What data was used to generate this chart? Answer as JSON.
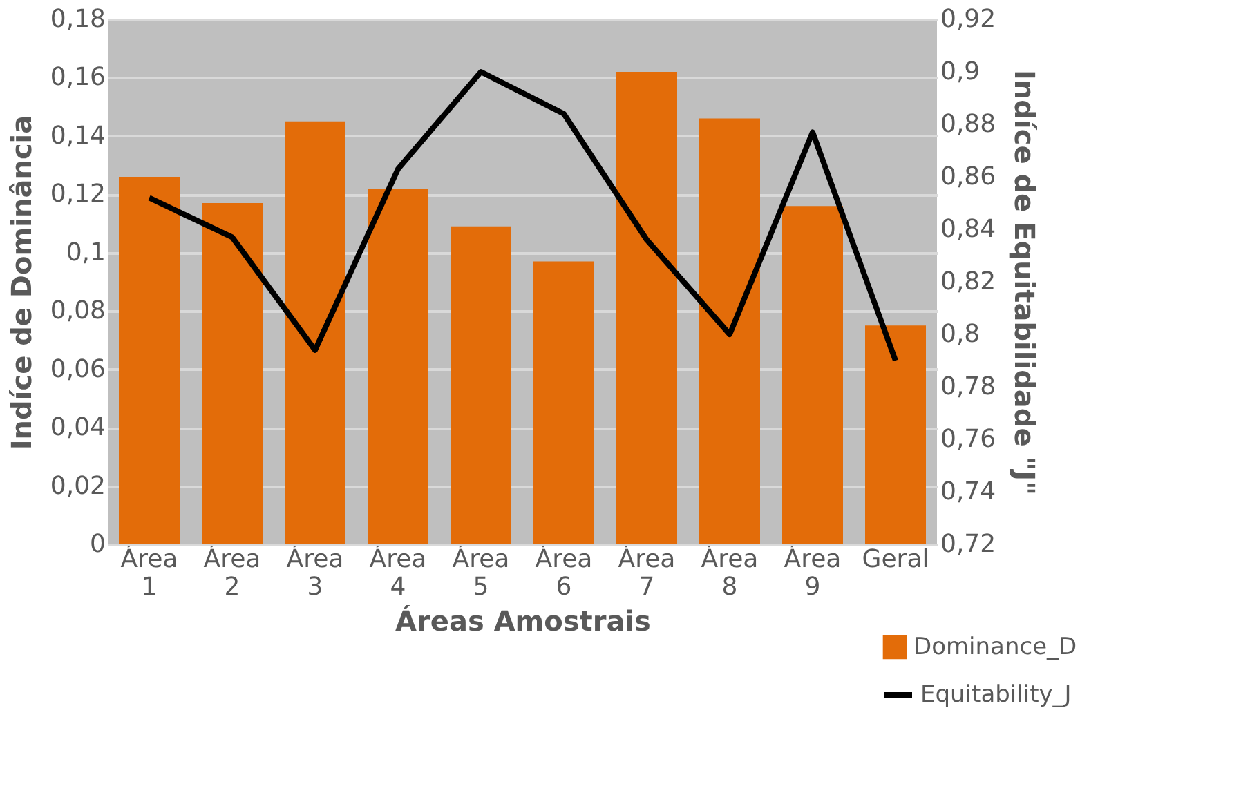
{
  "chart_data": {
    "type": "bar",
    "xlabel": "Áreas Amostrais",
    "ylabel": "Indíce de Dominância",
    "y2label": "Indíce de Equitabilidade \"J\"",
    "categories": [
      "Área 1",
      "Área 2",
      "Área 3",
      "Área 4",
      "Área 5",
      "Área 6",
      "Área 7",
      "Área 8",
      "Área 9",
      "Geral"
    ],
    "series": [
      {
        "name": "Dominance_D",
        "color": "#e36c09",
        "values": [
          0.126,
          0.117,
          0.145,
          0.122,
          0.109,
          0.097,
          0.162,
          0.146,
          0.116,
          0.075
        ]
      },
      {
        "name": "Equitability_J",
        "type": "line",
        "axis": "y2",
        "color": "#000000",
        "values": [
          0.852,
          0.837,
          0.794,
          0.863,
          0.9,
          0.884,
          0.836,
          0.8,
          0.877,
          0.79
        ]
      }
    ],
    "ylim": [
      0,
      0.18
    ],
    "yticks": [
      0,
      {
        "value": 0.02,
        "label": "0,02"
      },
      {
        "value": 0.04,
        "label": "0,04"
      },
      {
        "value": 0.06,
        "label": "0,06"
      },
      {
        "value": 0.08,
        "label": "0,08"
      },
      {
        "value": 0.1,
        "label": "0,1"
      },
      {
        "value": 0.12,
        "label": "0,12"
      },
      {
        "value": 0.14,
        "label": "0,14"
      },
      {
        "value": 0.16,
        "label": "0,16"
      },
      {
        "value": 0.18,
        "label": "0,18"
      }
    ],
    "y2lim": [
      0.72,
      0.92
    ],
    "y2ticks": [
      {
        "value": 0.72,
        "label": "0,72"
      },
      {
        "value": 0.74,
        "label": "0,74"
      },
      {
        "value": 0.76,
        "label": "0,76"
      },
      {
        "value": 0.78,
        "label": "0,78"
      },
      {
        "value": 0.8,
        "label": "0,8"
      },
      {
        "value": 0.82,
        "label": "0,82"
      },
      {
        "value": 0.84,
        "label": "0,84"
      },
      {
        "value": 0.86,
        "label": "0,86"
      },
      {
        "value": 0.88,
        "label": "0,88"
      },
      {
        "value": 0.9,
        "label": "0,9"
      },
      {
        "value": 0.92,
        "label": "0,92"
      }
    ],
    "grid": "y",
    "legend": "bottom right",
    "marker": "none",
    "line_style": "solid"
  }
}
